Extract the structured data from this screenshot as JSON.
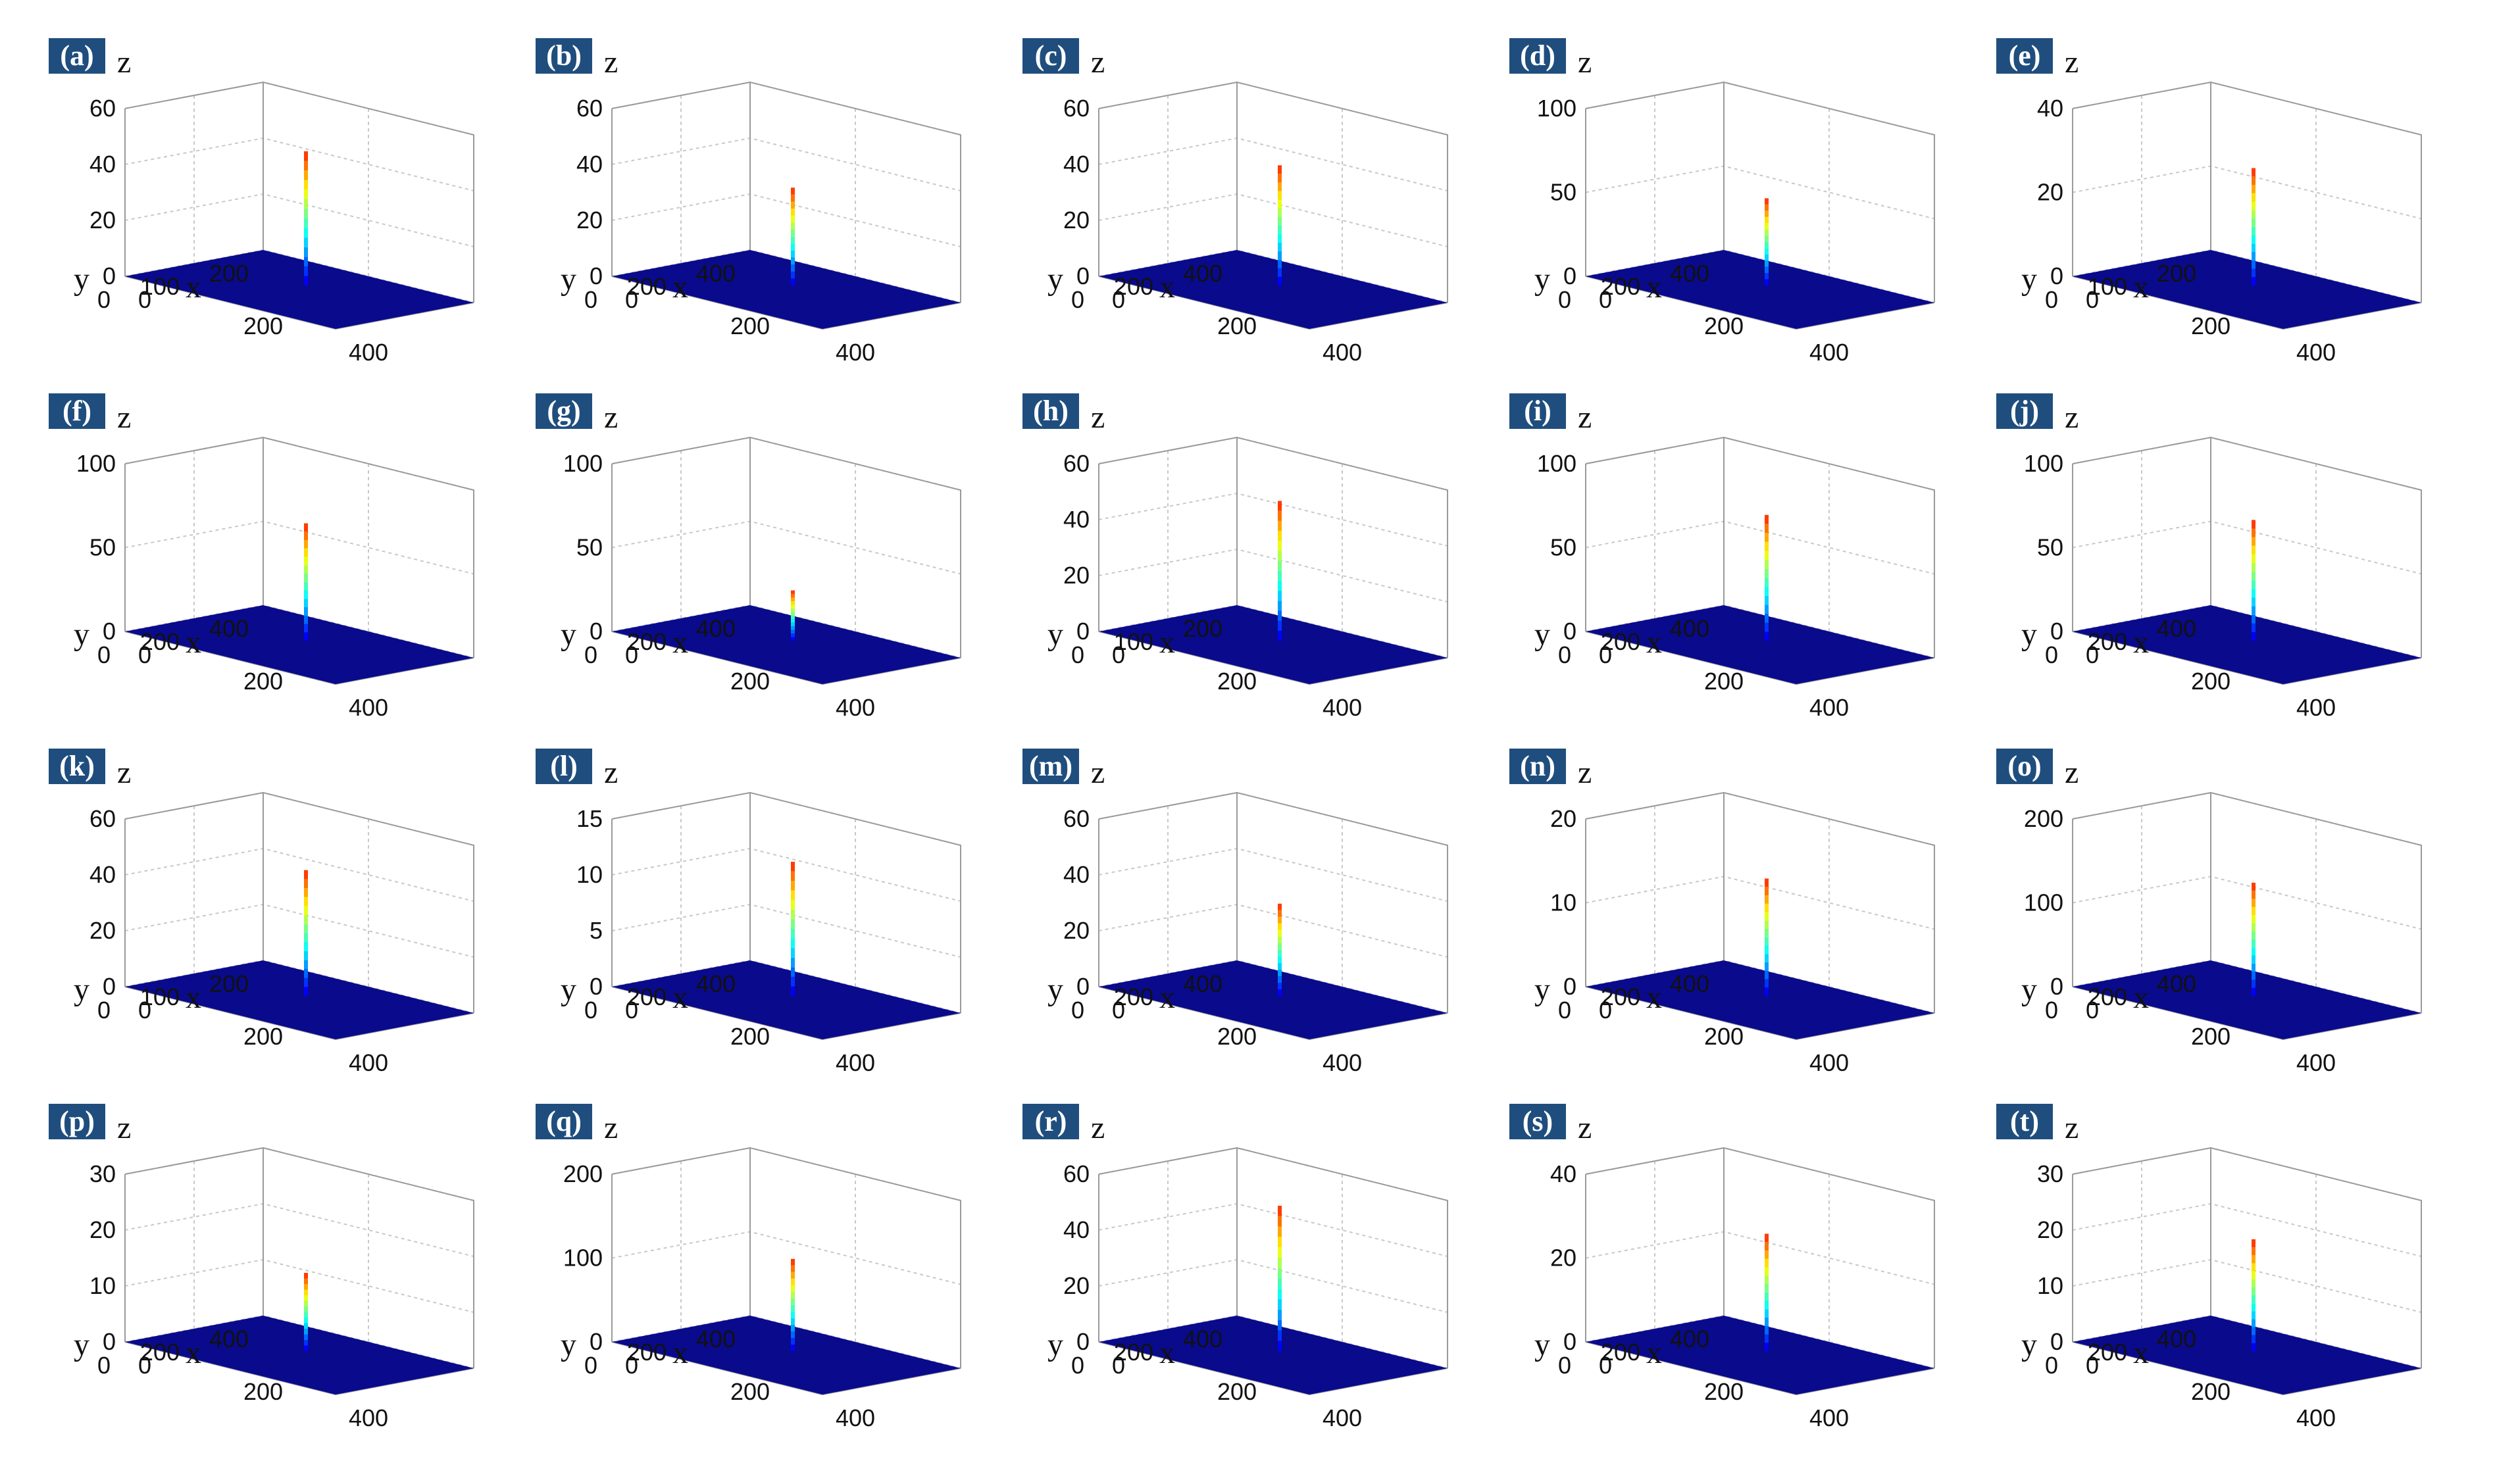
{
  "figure": {
    "axis_labels": {
      "x": "x",
      "y": "y",
      "z": "z"
    },
    "base_color": "#0a0a8c",
    "colormap": "jet"
  },
  "chart_data": [
    {
      "panel_label": "(a)",
      "type": "surface",
      "z_ticks": [
        "0",
        "20",
        "40",
        "60"
      ],
      "zlim": [
        0,
        60
      ],
      "y_ticks": [
        "0",
        "100",
        "200"
      ],
      "x_ticks": [
        "0",
        "200",
        "400"
      ],
      "peak_z": 48,
      "xlabel": "x",
      "ylabel": "y",
      "zlabel": "z"
    },
    {
      "panel_label": "(b)",
      "type": "surface",
      "z_ticks": [
        "0",
        "20",
        "40",
        "60"
      ],
      "zlim": [
        0,
        60
      ],
      "y_ticks": [
        "0",
        "200",
        "400"
      ],
      "x_ticks": [
        "0",
        "200",
        "400"
      ],
      "peak_z": 35,
      "xlabel": "x",
      "ylabel": "y",
      "zlabel": "z"
    },
    {
      "panel_label": "(c)",
      "type": "surface",
      "z_ticks": [
        "0",
        "20",
        "40",
        "60"
      ],
      "zlim": [
        0,
        60
      ],
      "y_ticks": [
        "0",
        "200",
        "400"
      ],
      "x_ticks": [
        "0",
        "200",
        "400"
      ],
      "peak_z": 43,
      "xlabel": "x",
      "ylabel": "y",
      "zlabel": "z"
    },
    {
      "panel_label": "(d)",
      "type": "surface",
      "z_ticks": [
        "0",
        "50",
        "100"
      ],
      "zlim": [
        0,
        100
      ],
      "y_ticks": [
        "0",
        "200",
        "400"
      ],
      "x_ticks": [
        "0",
        "200",
        "400"
      ],
      "peak_z": 52,
      "xlabel": "x",
      "ylabel": "y",
      "zlabel": "z"
    },
    {
      "panel_label": "(e)",
      "type": "surface",
      "z_ticks": [
        "0",
        "20",
        "40"
      ],
      "zlim": [
        0,
        40
      ],
      "y_ticks": [
        "0",
        "100",
        "200"
      ],
      "x_ticks": [
        "0",
        "200",
        "400"
      ],
      "peak_z": 28,
      "xlabel": "x",
      "ylabel": "y",
      "zlabel": "z"
    },
    {
      "panel_label": "(f)",
      "type": "surface",
      "z_ticks": [
        "0",
        "50",
        "100"
      ],
      "zlim": [
        0,
        100
      ],
      "y_ticks": [
        "0",
        "200",
        "400"
      ],
      "x_ticks": [
        "0",
        "200",
        "400"
      ],
      "peak_z": 70,
      "xlabel": "x",
      "ylabel": "y",
      "zlabel": "z"
    },
    {
      "panel_label": "(g)",
      "type": "surface",
      "z_ticks": [
        "0",
        "50",
        "100"
      ],
      "zlim": [
        0,
        100
      ],
      "y_ticks": [
        "0",
        "200",
        "400"
      ],
      "x_ticks": [
        "0",
        "200",
        "400"
      ],
      "peak_z": 30,
      "xlabel": "x",
      "ylabel": "y",
      "zlabel": "z"
    },
    {
      "panel_label": "(h)",
      "type": "surface",
      "z_ticks": [
        "0",
        "20",
        "40",
        "60"
      ],
      "zlim": [
        0,
        60
      ],
      "y_ticks": [
        "0",
        "100",
        "200"
      ],
      "x_ticks": [
        "0",
        "200",
        "400"
      ],
      "peak_z": 50,
      "xlabel": "x",
      "ylabel": "y",
      "zlabel": "z"
    },
    {
      "panel_label": "(i)",
      "type": "surface",
      "z_ticks": [
        "0",
        "50",
        "100"
      ],
      "zlim": [
        0,
        100
      ],
      "y_ticks": [
        "0",
        "200",
        "400"
      ],
      "x_ticks": [
        "0",
        "200",
        "400"
      ],
      "peak_z": 75,
      "xlabel": "x",
      "ylabel": "y",
      "zlabel": "z"
    },
    {
      "panel_label": "(j)",
      "type": "surface",
      "z_ticks": [
        "0",
        "50",
        "100"
      ],
      "zlim": [
        0,
        100
      ],
      "y_ticks": [
        "0",
        "200",
        "400"
      ],
      "x_ticks": [
        "0",
        "200",
        "400"
      ],
      "peak_z": 72,
      "xlabel": "x",
      "ylabel": "y",
      "zlabel": "z"
    },
    {
      "panel_label": "(k)",
      "type": "surface",
      "z_ticks": [
        "0",
        "20",
        "40",
        "60"
      ],
      "zlim": [
        0,
        60
      ],
      "y_ticks": [
        "0",
        "100",
        "200"
      ],
      "x_ticks": [
        "0",
        "200",
        "400"
      ],
      "peak_z": 45,
      "xlabel": "x",
      "ylabel": "y",
      "zlabel": "z"
    },
    {
      "panel_label": "(l)",
      "type": "surface",
      "z_ticks": [
        "0",
        "5",
        "10",
        "15"
      ],
      "zlim": [
        0,
        15
      ],
      "y_ticks": [
        "0",
        "200",
        "400"
      ],
      "x_ticks": [
        "0",
        "200",
        "400"
      ],
      "peak_z": 12,
      "xlabel": "x",
      "ylabel": "y",
      "zlabel": "z"
    },
    {
      "panel_label": "(m)",
      "type": "surface",
      "z_ticks": [
        "0",
        "20",
        "40",
        "60"
      ],
      "zlim": [
        0,
        60
      ],
      "y_ticks": [
        "0",
        "200",
        "400"
      ],
      "x_ticks": [
        "0",
        "200",
        "400"
      ],
      "peak_z": 33,
      "xlabel": "x",
      "ylabel": "y",
      "zlabel": "z"
    },
    {
      "panel_label": "(n)",
      "type": "surface",
      "z_ticks": [
        "0",
        "10",
        "20"
      ],
      "zlim": [
        0,
        20
      ],
      "y_ticks": [
        "0",
        "200",
        "400"
      ],
      "x_ticks": [
        "0",
        "200",
        "400"
      ],
      "peak_z": 14,
      "xlabel": "x",
      "ylabel": "y",
      "zlabel": "z"
    },
    {
      "panel_label": "(o)",
      "type": "surface",
      "z_ticks": [
        "0",
        "100",
        "200"
      ],
      "zlim": [
        0,
        200
      ],
      "y_ticks": [
        "0",
        "200",
        "400"
      ],
      "x_ticks": [
        "0",
        "200",
        "400"
      ],
      "peak_z": 135,
      "xlabel": "x",
      "ylabel": "y",
      "zlabel": "z"
    },
    {
      "panel_label": "(p)",
      "type": "surface",
      "z_ticks": [
        "0",
        "10",
        "20",
        "30"
      ],
      "zlim": [
        0,
        30
      ],
      "y_ticks": [
        "0",
        "200",
        "400"
      ],
      "x_ticks": [
        "0",
        "200",
        "400"
      ],
      "peak_z": 14,
      "xlabel": "x",
      "ylabel": "y",
      "zlabel": "z"
    },
    {
      "panel_label": "(q)",
      "type": "surface",
      "z_ticks": [
        "0",
        "100",
        "200"
      ],
      "zlim": [
        0,
        200
      ],
      "y_ticks": [
        "0",
        "200",
        "400"
      ],
      "x_ticks": [
        "0",
        "200",
        "400"
      ],
      "peak_z": 110,
      "xlabel": "x",
      "ylabel": "y",
      "zlabel": "z"
    },
    {
      "panel_label": "(r)",
      "type": "surface",
      "z_ticks": [
        "0",
        "20",
        "40",
        "60"
      ],
      "zlim": [
        0,
        60
      ],
      "y_ticks": [
        "0",
        "200",
        "400"
      ],
      "x_ticks": [
        "0",
        "200",
        "400"
      ],
      "peak_z": 52,
      "xlabel": "x",
      "ylabel": "y",
      "zlabel": "z"
    },
    {
      "panel_label": "(s)",
      "type": "surface",
      "z_ticks": [
        "0",
        "20",
        "40"
      ],
      "zlim": [
        0,
        40
      ],
      "y_ticks": [
        "0",
        "200",
        "400"
      ],
      "x_ticks": [
        "0",
        "200",
        "400"
      ],
      "peak_z": 28,
      "xlabel": "x",
      "ylabel": "y",
      "zlabel": "z"
    },
    {
      "panel_label": "(t)",
      "type": "surface",
      "z_ticks": [
        "0",
        "10",
        "20",
        "30"
      ],
      "zlim": [
        0,
        30
      ],
      "y_ticks": [
        "0",
        "200",
        "400"
      ],
      "x_ticks": [
        "0",
        "200",
        "400"
      ],
      "peak_z": 20,
      "xlabel": "x",
      "ylabel": "y",
      "zlabel": "z"
    }
  ]
}
